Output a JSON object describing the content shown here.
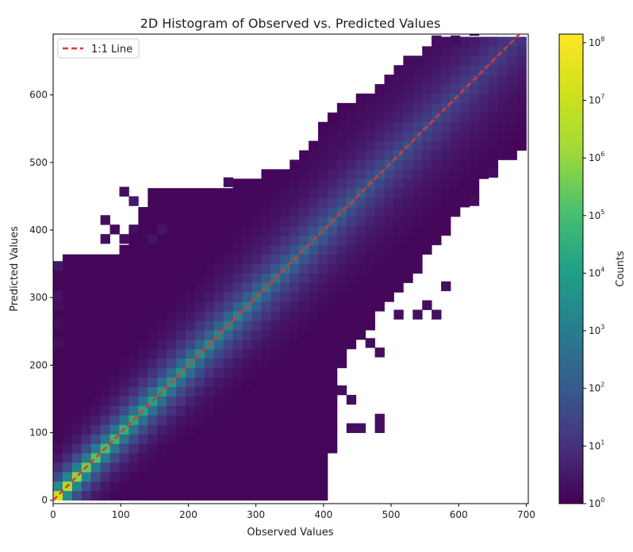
{
  "chart_data": {
    "type": "heatmap",
    "title": "2D Histogram of Observed vs. Predicted Values",
    "xlabel": "Observed Values",
    "ylabel": "Predicted Values",
    "xlim": [
      0,
      703
    ],
    "ylim": [
      -5,
      690
    ],
    "x_ticks": [
      0,
      100,
      200,
      300,
      400,
      500,
      600,
      700
    ],
    "y_ticks": [
      0,
      100,
      200,
      300,
      400,
      500,
      600
    ],
    "bin_width": 14,
    "colormap": "viridis",
    "log_scale": true,
    "colorbar": {
      "label": "Counts",
      "log_min": 0,
      "log_max": 8.15,
      "ticks": [
        {
          "base": "10",
          "exp": "0",
          "log": 0
        },
        {
          "base": "10",
          "exp": "1",
          "log": 1
        },
        {
          "base": "10",
          "exp": "2",
          "log": 2
        },
        {
          "base": "10",
          "exp": "3",
          "log": 3
        },
        {
          "base": "10",
          "exp": "4",
          "log": 4
        },
        {
          "base": "10",
          "exp": "5",
          "log": 5
        },
        {
          "base": "10",
          "exp": "6",
          "log": 6
        },
        {
          "base": "10",
          "exp": "7",
          "log": 7
        },
        {
          "base": "10",
          "exp": "8",
          "log": 8
        }
      ]
    },
    "reference_line": {
      "label": "1:1 Line",
      "x": [
        0,
        690
      ],
      "y": [
        0,
        690
      ],
      "color": "#e8342a",
      "style": "dashed"
    },
    "legend": {
      "position": "top-left",
      "entries": [
        "1:1 Line"
      ]
    },
    "density_model": {
      "peak_log_count": 8.15,
      "origin_bump": 1.9,
      "origin_scale": 35,
      "spread_base": 20,
      "spread_slope": 0.07,
      "diag_peak": 5.6,
      "diag_decay": 0.0022,
      "tail_floor": 0.1,
      "upper_envelope": [
        [
          0,
          355
        ],
        [
          95,
          365
        ],
        [
          150,
          462
        ],
        [
          280,
          470
        ],
        [
          360,
          500
        ],
        [
          420,
          585
        ],
        [
          470,
          600
        ],
        [
          520,
          650
        ],
        [
          560,
          680
        ],
        [
          700,
          690
        ]
      ],
      "lower_envelope": [
        [
          0,
          0
        ],
        [
          390,
          0
        ],
        [
          410,
          10
        ],
        [
          420,
          190
        ],
        [
          470,
          260
        ],
        [
          540,
          340
        ],
        [
          600,
          420
        ],
        [
          660,
          500
        ],
        [
          703,
          520
        ]
      ],
      "x_min": 0,
      "x_max": 703
    },
    "isolated_bins": [
      [
        98,
        450,
        0.3
      ],
      [
        112,
        436,
        0.5
      ],
      [
        70,
        408,
        0.3
      ],
      [
        84,
        394,
        0.2
      ],
      [
        112,
        394,
        0.3
      ],
      [
        70,
        380,
        0.3
      ],
      [
        98,
        380,
        0.3
      ],
      [
        140,
        380,
        0.4
      ],
      [
        154,
        394,
        0.4
      ],
      [
        252,
        464,
        0.3
      ],
      [
        0,
        340,
        0.5
      ],
      [
        0,
        296,
        0.4
      ],
      [
        0,
        282,
        0.3
      ],
      [
        0,
        254,
        0.3
      ],
      [
        0,
        226,
        0.3
      ],
      [
        420,
        156,
        0.3
      ],
      [
        434,
        142,
        0.3
      ],
      [
        434,
        100,
        0.3
      ],
      [
        448,
        100,
        0.3
      ],
      [
        476,
        114,
        0.3
      ],
      [
        476,
        100,
        0.3
      ],
      [
        546,
        282,
        0.3
      ],
      [
        560,
        268,
        0.3
      ],
      [
        574,
        310,
        0.3
      ],
      [
        616,
        436,
        0.3
      ],
      [
        644,
        478,
        0.3
      ],
      [
        560,
        674,
        0.3
      ],
      [
        588,
        674,
        0.3
      ],
      [
        616,
        688,
        0.3
      ],
      [
        476,
        212,
        0.3
      ],
      [
        462,
        226,
        0.3
      ],
      [
        504,
        268,
        0.3
      ],
      [
        532,
        268,
        0.3
      ]
    ],
    "cleared_bins": [
      [
        126,
        436
      ],
      [
        126,
        422
      ],
      [
        84,
        408
      ],
      [
        112,
        408
      ],
      [
        98,
        394
      ],
      [
        140,
        394
      ],
      [
        84,
        380
      ],
      [
        112,
        380
      ],
      [
        154,
        380
      ],
      [
        168,
        394
      ],
      [
        154,
        366
      ],
      [
        0,
        310
      ],
      [
        0,
        268
      ],
      [
        406,
        142
      ],
      [
        420,
        142
      ],
      [
        448,
        114
      ],
      [
        462,
        114
      ],
      [
        462,
        100
      ],
      [
        532,
        296
      ],
      [
        546,
        296
      ],
      [
        560,
        296
      ],
      [
        574,
        296
      ],
      [
        602,
        450
      ],
      [
        630,
        450
      ]
    ]
  }
}
